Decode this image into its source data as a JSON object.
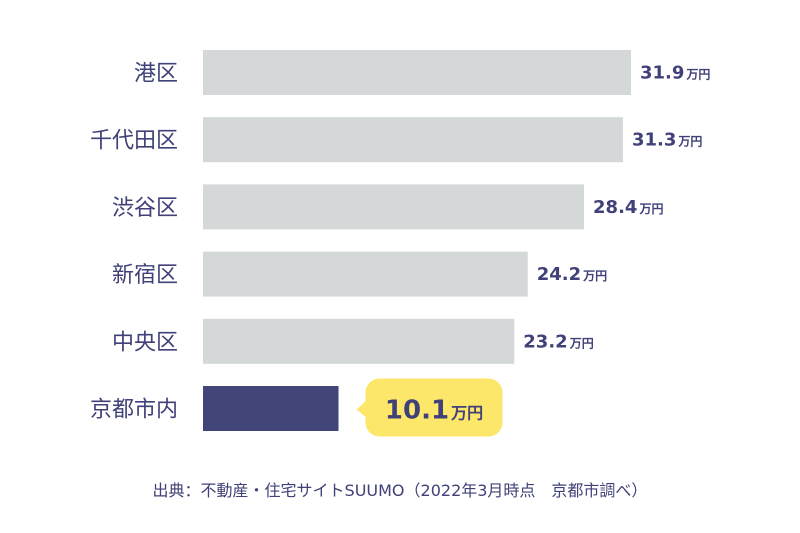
{
  "chart_data": {
    "type": "bar",
    "orientation": "horizontal",
    "title": "",
    "xlabel": "",
    "ylabel": "",
    "unit": "万円",
    "categories": [
      "港区",
      "千代田区",
      "渋谷区",
      "新宿区",
      "中央区",
      "京都市内"
    ],
    "values": [
      31.9,
      31.3,
      28.4,
      24.2,
      23.2,
      10.1
    ],
    "value_labels": [
      "31.9",
      "31.3",
      "28.4",
      "24.2",
      "23.2",
      "10.1"
    ],
    "highlight_index": 5,
    "xlim": [
      0,
      31.9
    ],
    "grid": false,
    "legend": "none"
  },
  "colors": {
    "bar": "#d5d8d8",
    "highlight_bar": "#414578",
    "callout": "#fce76b",
    "text": "#3f4178"
  },
  "source_text": "出典：不動産・住宅サイトSUUMO（2022年3月時点　京都市調べ）"
}
